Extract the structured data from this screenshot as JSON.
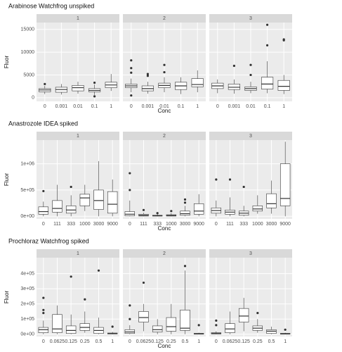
{
  "chart_data": [
    {
      "type": "boxplot",
      "title": "Arabinose Watchfrog unspiked",
      "xlabel": "Conc",
      "ylabel": "Fluor",
      "facets": [
        "1",
        "2",
        "3"
      ],
      "categories": [
        "0",
        "0.001",
        "0.01",
        "0.1",
        "1"
      ],
      "ylim": [
        -800,
        16500
      ],
      "yticks": [
        0,
        5000,
        10000,
        15000
      ],
      "grid": true,
      "panel_color": "#ebebeb",
      "box_color": "#333333",
      "boxes": [
        [
          {
            "min": 800,
            "q1": 1300,
            "median": 1700,
            "q3": 2000,
            "max": 2600,
            "outliers": [
              3000
            ]
          },
          {
            "min": 700,
            "q1": 1200,
            "median": 1800,
            "q3": 2300,
            "max": 3000,
            "outliers": []
          },
          {
            "min": 900,
            "q1": 1500,
            "median": 2200,
            "q3": 2700,
            "max": 3500,
            "outliers": []
          },
          {
            "min": 600,
            "q1": 1300,
            "median": 1600,
            "q3": 2000,
            "max": 2900,
            "outliers": [
              300,
              3300
            ]
          },
          {
            "min": 1500,
            "q1": 2200,
            "median": 2800,
            "q3": 3400,
            "max": 5200,
            "outliers": []
          }
        ],
        [
          {
            "min": 1200,
            "q1": 2200,
            "median": 2600,
            "q3": 3000,
            "max": 4200,
            "outliers": [
              500,
              5500,
              6500,
              8200
            ]
          },
          {
            "min": 900,
            "q1": 1500,
            "median": 2000,
            "q3": 2600,
            "max": 3500,
            "outliers": [
              4800,
              5200
            ]
          },
          {
            "min": 1200,
            "q1": 2200,
            "median": 2700,
            "q3": 3200,
            "max": 4500,
            "outliers": [
              5600,
              7200
            ]
          },
          {
            "min": 800,
            "q1": 1800,
            "median": 2600,
            "q3": 3400,
            "max": 4500,
            "outliers": []
          },
          {
            "min": 1200,
            "q1": 2400,
            "median": 2900,
            "q3": 4200,
            "max": 6000,
            "outliers": []
          }
        ],
        [
          {
            "min": 1000,
            "q1": 2000,
            "median": 2600,
            "q3": 3200,
            "max": 4000,
            "outliers": []
          },
          {
            "min": 900,
            "q1": 1800,
            "median": 2300,
            "q3": 3000,
            "max": 4000,
            "outliers": [
              7000
            ]
          },
          {
            "min": 1000,
            "q1": 1600,
            "median": 2000,
            "q3": 2400,
            "max": 3500,
            "outliers": [
              5000,
              7200
            ]
          },
          {
            "min": 1000,
            "q1": 1900,
            "median": 3000,
            "q3": 4500,
            "max": 8000,
            "outliers": [
              11500,
              16000
            ]
          },
          {
            "min": 800,
            "q1": 1600,
            "median": 2500,
            "q3": 3800,
            "max": 5000,
            "outliers": [
              12600,
              12800
            ]
          }
        ]
      ]
    },
    {
      "type": "boxplot",
      "title": "Anastrozole IDEA spiked",
      "xlabel": "Conc",
      "ylabel": "Fluor",
      "facets": [
        "1",
        "2",
        "3"
      ],
      "categories": [
        "0",
        "111",
        "333",
        "1000",
        "3000",
        "9000"
      ],
      "ylim": [
        -50000,
        1450000
      ],
      "yticks": [
        {
          "value": 0,
          "label": "0e+00"
        },
        {
          "value": 500000,
          "label": "5e+05"
        },
        {
          "value": 1000000,
          "label": "1e+06"
        }
      ],
      "grid": true,
      "panel_color": "#ebebeb",
      "box_color": "#333333",
      "boxes": [
        [
          {
            "min": 0,
            "q1": 40000,
            "median": 90000,
            "q3": 180000,
            "max": 280000,
            "outliers": [
              480000
            ]
          },
          {
            "min": 0,
            "q1": 80000,
            "median": 150000,
            "q3": 300000,
            "max": 600000,
            "outliers": []
          },
          {
            "min": 0,
            "q1": 60000,
            "median": 120000,
            "q3": 200000,
            "max": 400000,
            "outliers": [
              560000
            ]
          },
          {
            "min": 100000,
            "q1": 200000,
            "median": 350000,
            "q3": 420000,
            "max": 600000,
            "outliers": []
          },
          {
            "min": 0,
            "q1": 130000,
            "median": 300000,
            "q3": 500000,
            "max": 1050000,
            "outliers": []
          },
          {
            "min": 0,
            "q1": 60000,
            "median": 230000,
            "q3": 470000,
            "max": 700000,
            "outliers": []
          }
        ],
        [
          {
            "min": 0,
            "q1": 10000,
            "median": 40000,
            "q3": 90000,
            "max": 300000,
            "outliers": [
              500000,
              820000
            ]
          },
          {
            "min": 0,
            "q1": 5000,
            "median": 20000,
            "q3": 40000,
            "max": 70000,
            "outliers": [
              120000
            ]
          },
          {
            "min": 0,
            "q1": 5000,
            "median": 10000,
            "q3": 20000,
            "max": 40000,
            "outliers": [
              60000
            ]
          },
          {
            "min": 0,
            "q1": 5000,
            "median": 15000,
            "q3": 30000,
            "max": 60000,
            "outliers": [
              100000
            ]
          },
          {
            "min": 0,
            "q1": 20000,
            "median": 50000,
            "q3": 100000,
            "max": 200000,
            "outliers": [
              260000,
              320000
            ]
          },
          {
            "min": 0,
            "q1": 40000,
            "median": 100000,
            "q3": 240000,
            "max": 420000,
            "outliers": []
          }
        ],
        [
          {
            "min": 0,
            "q1": 60000,
            "median": 110000,
            "q3": 160000,
            "max": 300000,
            "outliers": [
              700000
            ]
          },
          {
            "min": 0,
            "q1": 40000,
            "median": 80000,
            "q3": 120000,
            "max": 360000,
            "outliers": [
              700000
            ]
          },
          {
            "min": 0,
            "q1": 20000,
            "median": 60000,
            "q3": 100000,
            "max": 200000,
            "outliers": [
              560000
            ]
          },
          {
            "min": 50000,
            "q1": 100000,
            "median": 140000,
            "q3": 200000,
            "max": 400000,
            "outliers": []
          },
          {
            "min": 50000,
            "q1": 160000,
            "median": 240000,
            "q3": 430000,
            "max": 680000,
            "outliers": []
          },
          {
            "min": 0,
            "q1": 200000,
            "median": 340000,
            "q3": 1000000,
            "max": 1420000,
            "outliers": []
          }
        ]
      ]
    },
    {
      "type": "boxplot",
      "title": "Prochloraz Watchfrog spiked",
      "xlabel": "Conc",
      "ylabel": "Fluor",
      "facets": [
        "1",
        "2",
        "3"
      ],
      "categories": [
        "0",
        "0.0625",
        "0.125",
        "0.25",
        "0.5",
        "1"
      ],
      "ylim": [
        -15000,
        505000
      ],
      "yticks": [
        {
          "value": 0,
          "label": "0e+00"
        },
        {
          "value": 100000,
          "label": "1e+05"
        },
        {
          "value": 200000,
          "label": "2e+05"
        },
        {
          "value": 300000,
          "label": "3e+05"
        },
        {
          "value": 400000,
          "label": "4e+05"
        }
      ],
      "grid": true,
      "panel_color": "#ebebeb",
      "box_color": "#333333",
      "boxes": [
        [
          {
            "min": 0,
            "q1": 10000,
            "median": 30000,
            "q3": 45000,
            "max": 90000,
            "outliers": [
              140000,
              160000,
              240000
            ]
          },
          {
            "min": 0,
            "q1": 10000,
            "median": 35000,
            "q3": 130000,
            "max": 190000,
            "outliers": []
          },
          {
            "min": 0,
            "q1": 5000,
            "median": 25000,
            "q3": 55000,
            "max": 130000,
            "outliers": [
              380000
            ]
          },
          {
            "min": 10000,
            "q1": 25000,
            "median": 45000,
            "q3": 70000,
            "max": 150000,
            "outliers": [
              230000
            ]
          },
          {
            "min": 0,
            "q1": 5000,
            "median": 25000,
            "q3": 45000,
            "max": 110000,
            "outliers": [
              420000
            ]
          },
          {
            "min": 0,
            "q1": 2000,
            "median": 5000,
            "q3": 8000,
            "max": 15000,
            "outliers": [
              50000
            ]
          }
        ],
        [
          {
            "min": 0,
            "q1": 5000,
            "median": 15000,
            "q3": 30000,
            "max": 60000,
            "outliers": [
              100000,
              190000
            ]
          },
          {
            "min": 20000,
            "q1": 80000,
            "median": 110000,
            "q3": 150000,
            "max": 200000,
            "outliers": [
              340000
            ]
          },
          {
            "min": 0,
            "q1": 15000,
            "median": 30000,
            "q3": 55000,
            "max": 100000,
            "outliers": []
          },
          {
            "min": 0,
            "q1": 20000,
            "median": 50000,
            "q3": 110000,
            "max": 200000,
            "outliers": []
          },
          {
            "min": 0,
            "q1": 25000,
            "median": 40000,
            "q3": 160000,
            "max": 420000,
            "outliers": [
              450000
            ]
          },
          {
            "min": 0,
            "q1": 1000,
            "median": 3000,
            "q3": 6000,
            "max": 10000,
            "outliers": [
              60000
            ]
          }
        ],
        [
          {
            "min": 0,
            "q1": 2000,
            "median": 5000,
            "q3": 10000,
            "max": 20000,
            "outliers": [
              60000,
              90000
            ]
          },
          {
            "min": 0,
            "q1": 10000,
            "median": 35000,
            "q3": 70000,
            "max": 150000,
            "outliers": []
          },
          {
            "min": 20000,
            "q1": 80000,
            "median": 120000,
            "q3": 170000,
            "max": 240000,
            "outliers": []
          },
          {
            "min": 10000,
            "q1": 25000,
            "median": 40000,
            "q3": 55000,
            "max": 100000,
            "outliers": [
              140000
            ]
          },
          {
            "min": 0,
            "q1": 5000,
            "median": 20000,
            "q3": 30000,
            "max": 50000,
            "outliers": []
          },
          {
            "min": 0,
            "q1": 1000,
            "median": 3000,
            "q3": 6000,
            "max": 10000,
            "outliers": [
              30000
            ]
          }
        ]
      ]
    }
  ]
}
